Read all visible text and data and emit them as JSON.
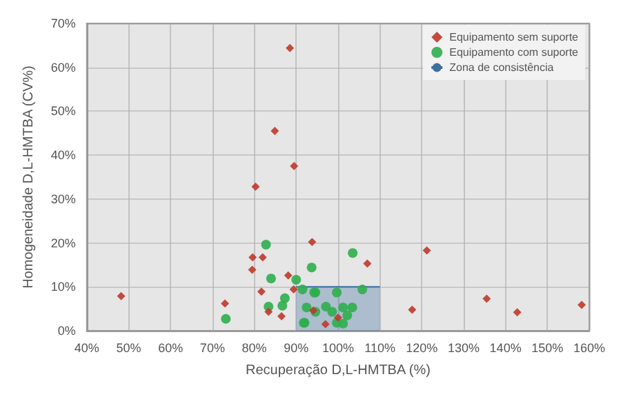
{
  "chart_data": {
    "type": "scatter",
    "xlabel": "Recuperação D,L-HMTBA (%)",
    "ylabel": "Homogeneidade D,L-HMTBA (CV%)",
    "xlim": [
      40,
      160
    ],
    "xticks": [
      {
        "value": 40,
        "label": "40%"
      },
      {
        "value": 50,
        "label": "50%"
      },
      {
        "value": 60,
        "label": "60%"
      },
      {
        "value": 70,
        "label": "70%"
      },
      {
        "value": 80,
        "label": "80%"
      },
      {
        "value": 90,
        "label": "90%"
      },
      {
        "value": 100,
        "label": "100%"
      },
      {
        "value": 110,
        "label": "110%"
      },
      {
        "value": 120,
        "label": "120%"
      },
      {
        "value": 130,
        "label": "130%"
      },
      {
        "value": 140,
        "label": "140%"
      },
      {
        "value": 150,
        "label": "150%"
      },
      {
        "value": 160,
        "label": "160%"
      }
    ],
    "ylim": [
      0,
      70
    ],
    "yticks": [
      {
        "value": 0,
        "label": "0%"
      },
      {
        "value": 10,
        "label": "10%"
      },
      {
        "value": 20,
        "label": "20%"
      },
      {
        "value": 30,
        "label": "30%"
      },
      {
        "value": 40,
        "label": "40%"
      },
      {
        "value": 50,
        "label": "50%"
      },
      {
        "value": 60,
        "label": "60%"
      },
      {
        "value": 70,
        "label": "70%"
      }
    ],
    "grid": true,
    "legend": "top right",
    "series": [
      {
        "name": "Equipamento sem suporte",
        "marker": "diamond",
        "color": "#c0392b",
        "x": [
          88.5,
          84.9,
          89.5,
          80.3,
          93.8,
          79.6,
          82.0,
          79.5,
          88.1,
          81.7,
          89.4,
          48.2,
          73.0,
          83.4,
          86.5,
          94.1,
          107.0,
          121.2,
          117.7,
          135.5,
          142.8,
          158.2,
          100,
          97
        ],
        "values": [
          64.4,
          45.5,
          37.5,
          32.8,
          20.2,
          16.7,
          16.7,
          13.9,
          12.6,
          8.9,
          9.4,
          7.9,
          6.2,
          4.3,
          3.3,
          4.6,
          15.3,
          18.3,
          4.8,
          7.3,
          4.2,
          5.9,
          3,
          1.5
        ]
      },
      {
        "name": "Equipamento com suporte",
        "marker": "circle",
        "color": "#2fae4e",
        "x": [
          82.8,
          93.7,
          84.0,
          90.0,
          87.3,
          83.4,
          86.7,
          73.2,
          91.5,
          94.3,
          92.5,
          91.8,
          103.5,
          99.7,
          105.8,
          97.1,
          98.6,
          101.2,
          103.4,
          99.7,
          101.2,
          92.0,
          94.6,
          102.2,
          94.6
        ],
        "values": [
          19.6,
          14.4,
          11.9,
          11.6,
          7.4,
          5.5,
          5.7,
          2.7,
          9.4,
          8.7,
          5.3,
          1.8,
          17.7,
          8.7,
          9.4,
          5.5,
          4.3,
          5.3,
          5.3,
          1.8,
          1.6,
          1.8,
          4.3,
          3.5,
          8.7
        ]
      },
      {
        "name": "Zona de consistência",
        "type": "area",
        "color": "#3f6f9f",
        "x": [
          90,
          110
        ],
        "values": [
          10,
          10
        ]
      }
    ]
  }
}
